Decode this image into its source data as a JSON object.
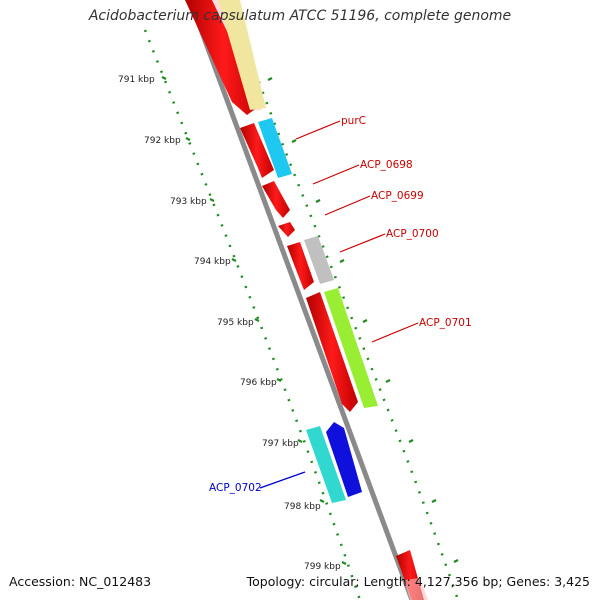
{
  "title": "Acidobacterium capsulatum ATCC 51196, complete genome",
  "accession": "Accession: NC_012483",
  "summary": "Topology: circular; Length: 4,127,356 bp; Genes: 3,425",
  "ruler_labels": [
    "791 kbp",
    "792 kbp",
    "793 kbp",
    "794 kbp",
    "795 kbp",
    "796 kbp",
    "797 kbp",
    "798 kbp",
    "799 kbp"
  ],
  "gene_labels": [
    {
      "text": "purC",
      "color": "#cc0000"
    },
    {
      "text": "ACP_0698",
      "color": "#cc0000"
    },
    {
      "text": "ACP_0699",
      "color": "#cc0000"
    },
    {
      "text": "ACP_0700",
      "color": "#cc0000"
    },
    {
      "text": "ACP_0701",
      "color": "#cc0000"
    },
    {
      "text": "ACP_0702",
      "color": "#0000cc"
    }
  ],
  "colors": {
    "backbone": "#8a8a8a",
    "ruler": "#1f8a1f",
    "cds_red": "#ff0000",
    "pale_yellow": "#f0e6a0",
    "cyan": "#1ec8f0",
    "gray": "#c0c0c0",
    "lime": "#99ee33",
    "teal": "#30d8d0",
    "blue": "#1010dd"
  }
}
